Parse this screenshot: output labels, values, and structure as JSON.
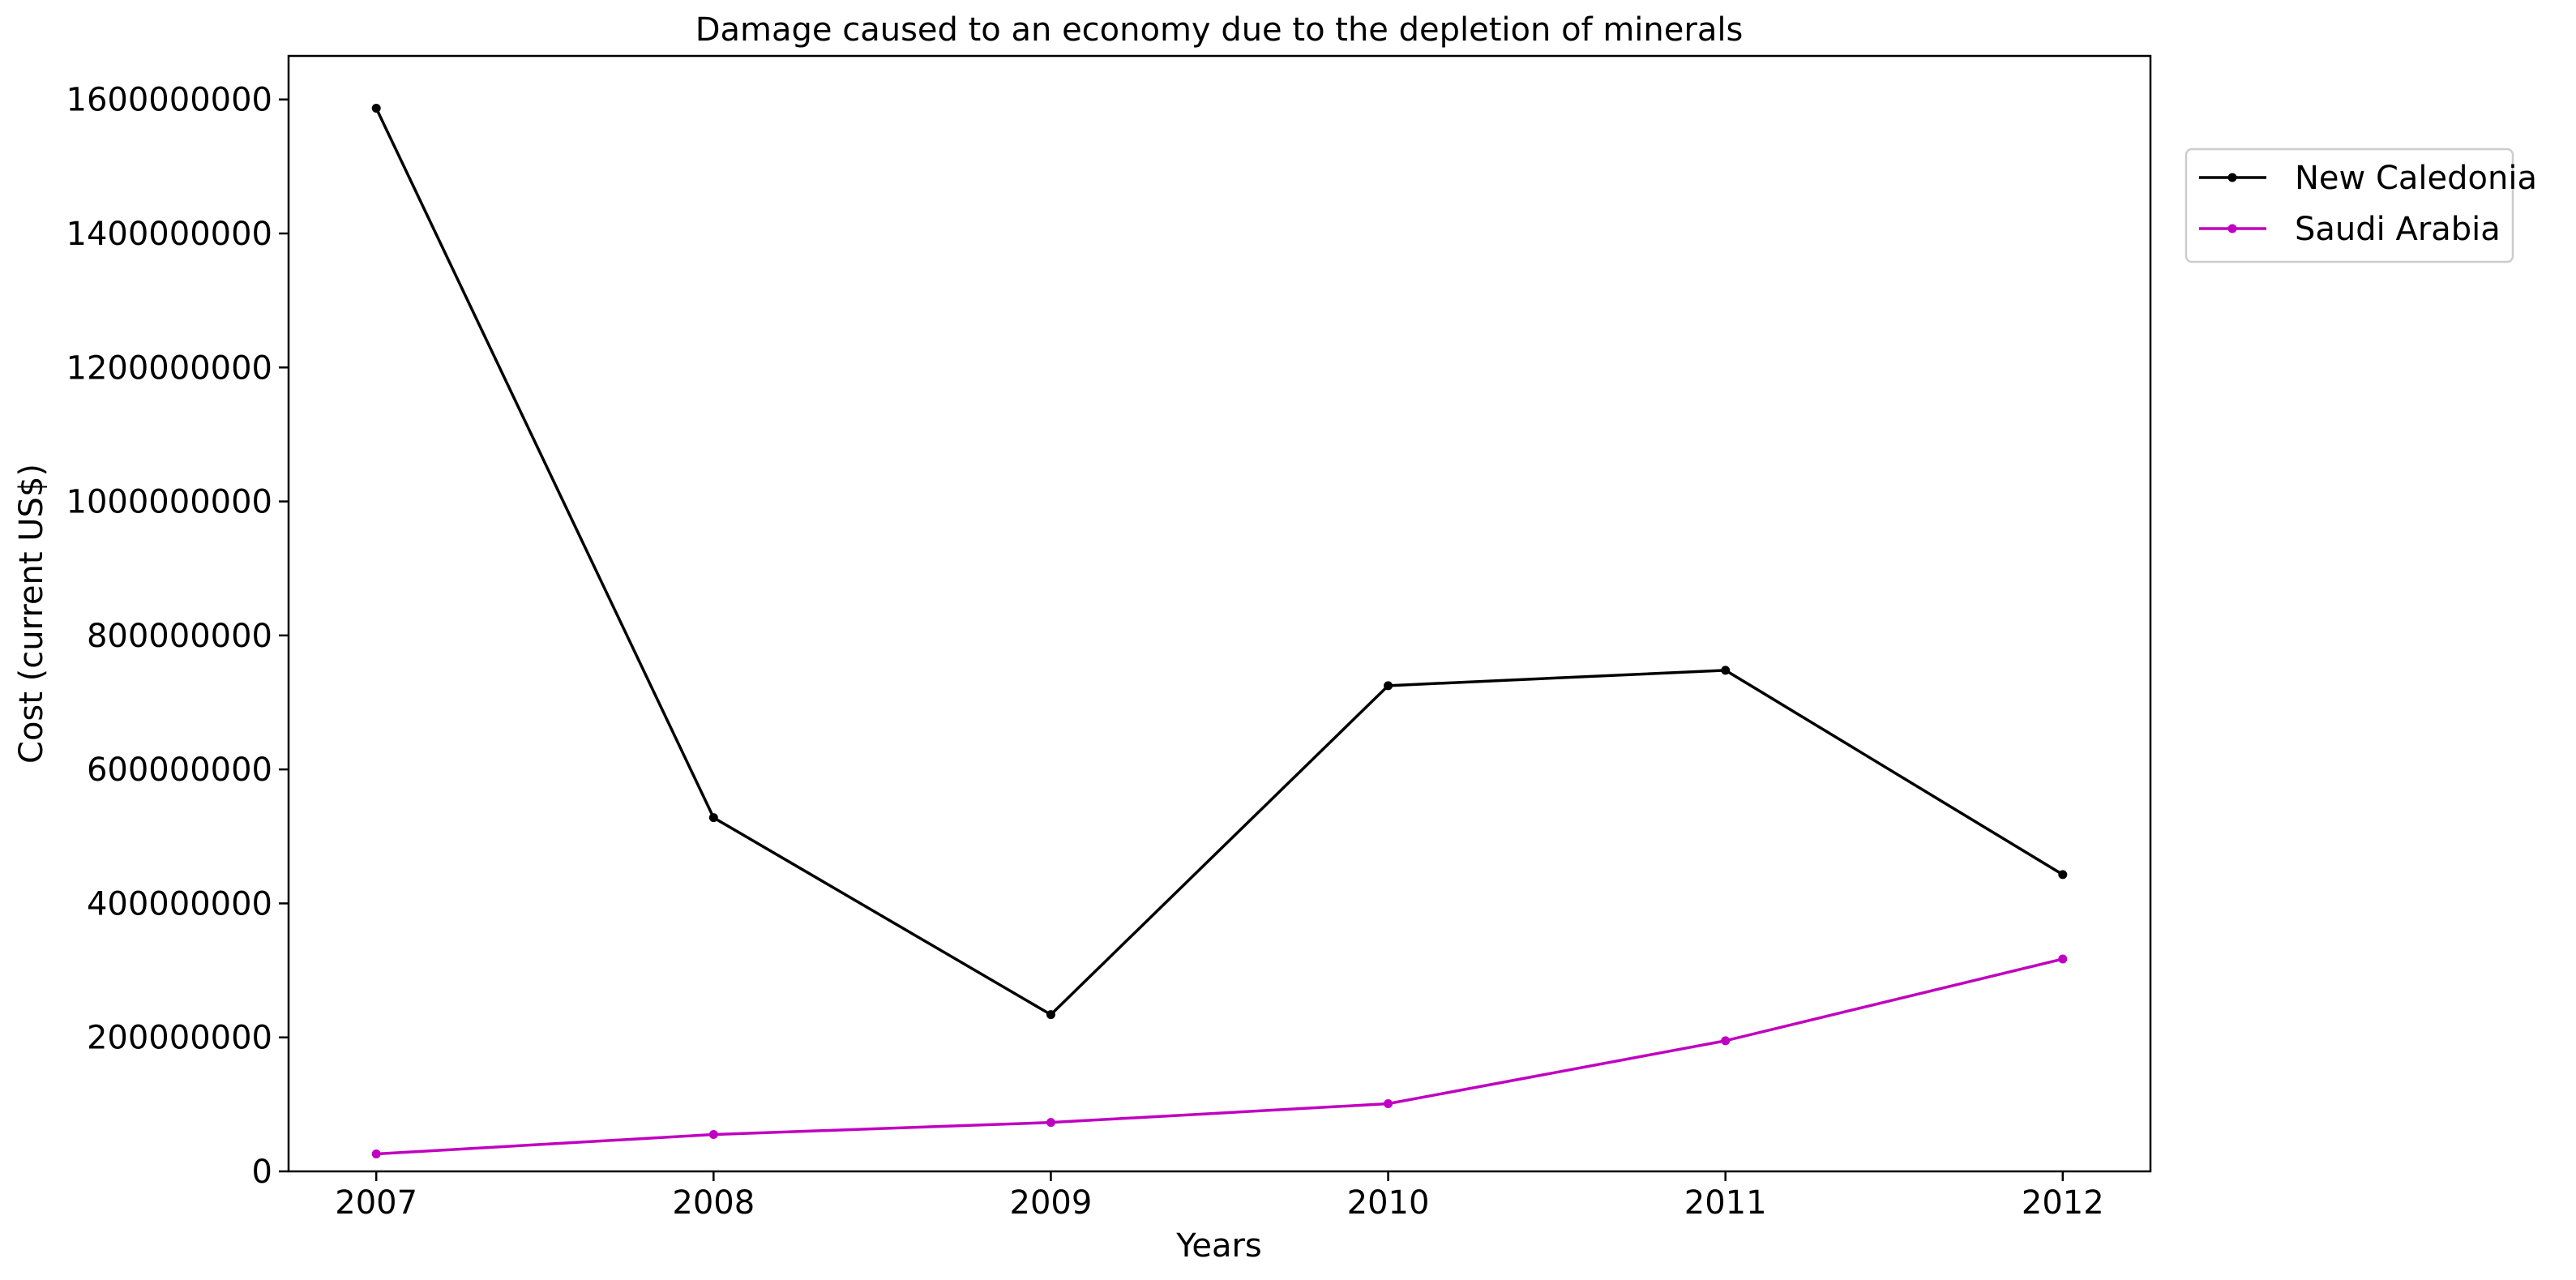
{
  "chart_data": {
    "type": "line",
    "title": "Damage caused to an economy due to the depletion of minerals",
    "xlabel": "Years",
    "ylabel": "Cost (current US$)",
    "x": [
      "2007",
      "2008",
      "2009",
      "2010",
      "2011",
      "2012"
    ],
    "xlim": [
      2006.74,
      2012.26
    ],
    "ylim": [
      0,
      1665000000
    ],
    "yticks": [
      0,
      200000000,
      400000000,
      600000000,
      800000000,
      1000000000,
      1200000000,
      1400000000,
      1600000000
    ],
    "ytick_labels": [
      "0",
      "200000000",
      "400000000",
      "600000000",
      "800000000",
      "1000000000",
      "1200000000",
      "1400000000",
      "1600000000"
    ],
    "grid": false,
    "legend_position": "outside-top-right",
    "series": [
      {
        "name": "New Caledonia",
        "color": "#000000",
        "marker": "dot",
        "values": [
          1587000000,
          528000000,
          234000000,
          725000000,
          748000000,
          443000000
        ]
      },
      {
        "name": "Saudi Arabia",
        "color": "#c000c0",
        "marker": "dot",
        "values": [
          26000000,
          55000000,
          73000000,
          101000000,
          195000000,
          317000000
        ]
      }
    ]
  }
}
